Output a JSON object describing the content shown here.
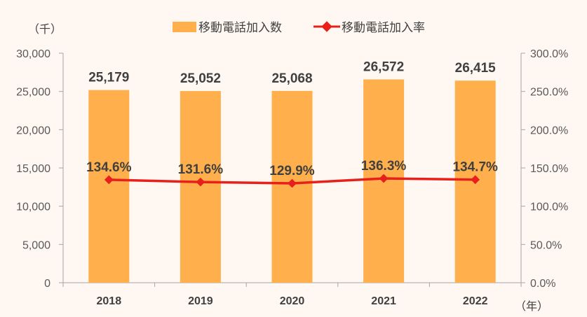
{
  "chart_data": {
    "type": "bar",
    "categories": [
      "2018",
      "2019",
      "2020",
      "2021",
      "2022"
    ],
    "series": [
      {
        "name": "移動電話加入数",
        "type": "bar",
        "axis": "left",
        "values": [
          25179,
          25052,
          25068,
          26572,
          26415
        ],
        "labels": [
          "25,179",
          "25,052",
          "25,068",
          "26,572",
          "26,415"
        ],
        "color": "#ffb04c"
      },
      {
        "name": "移動電話加入率",
        "type": "line",
        "axis": "right",
        "values": [
          134.6,
          131.6,
          129.9,
          136.3,
          134.7
        ],
        "labels": [
          "134.6%",
          "131.6%",
          "129.9%",
          "136.3%",
          "134.7%"
        ],
        "color": "#e8201c"
      }
    ],
    "y_left": {
      "unit": "（千）",
      "ylim": [
        0,
        30000
      ],
      "ticks": [
        "0",
        "5,000",
        "10,000",
        "15,000",
        "20,000",
        "25,000",
        "30,000"
      ]
    },
    "y_right": {
      "ylim": [
        0,
        300
      ],
      "ticks": [
        "0.0%",
        "50.0%",
        "100.0%",
        "150.0%",
        "200.0%",
        "250.0%",
        "300.0%"
      ]
    },
    "x_unit": "（年）",
    "legend_position": "top",
    "grid": false
  }
}
